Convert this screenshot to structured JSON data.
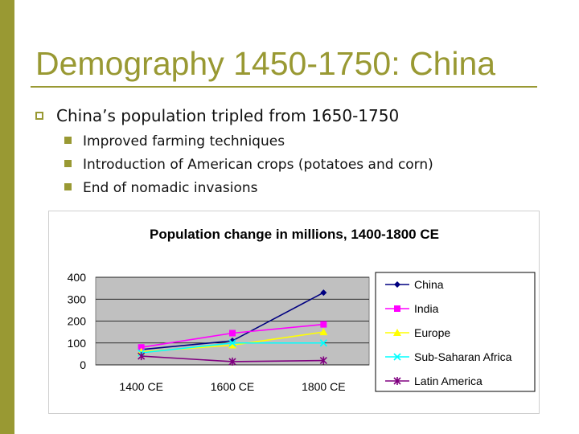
{
  "slide": {
    "title": "Demography 1450-1750: China",
    "bullets": [
      {
        "text": "China’s population tripled from 1650-1750",
        "children": [
          "Improved farming techniques",
          "Introduction of American crops (potatoes and corn)",
          "End of nomadic invasions"
        ]
      }
    ],
    "accent_color": "#999933"
  },
  "chart_data": {
    "type": "line",
    "title": "Population change in millions, 1400-1800 CE",
    "categories": [
      "1400 CE",
      "1600 CE",
      "1800 CE"
    ],
    "ylim": [
      0,
      400
    ],
    "yticks": [
      0,
      100,
      200,
      300,
      400
    ],
    "grid": "horizontal",
    "plot_background": "#c0c0c0",
    "legend_position": "right",
    "series": [
      {
        "name": "China",
        "values": [
          70,
          110,
          330
        ],
        "color": "#000080",
        "marker": "diamond"
      },
      {
        "name": "India",
        "values": [
          80,
          145,
          185
        ],
        "color": "#ff00ff",
        "marker": "square"
      },
      {
        "name": "Europe",
        "values": [
          60,
          90,
          150
        ],
        "color": "#ffff00",
        "marker": "triangle"
      },
      {
        "name": "Sub-Saharan Africa",
        "values": [
          55,
          100,
          100
        ],
        "color": "#00ffff",
        "marker": "x"
      },
      {
        "name": "Latin America",
        "values": [
          40,
          15,
          20
        ],
        "color": "#800080",
        "marker": "star"
      }
    ]
  }
}
